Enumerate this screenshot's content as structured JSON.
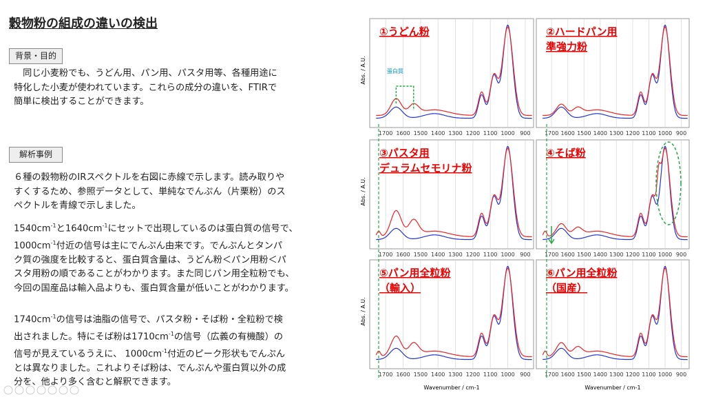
{
  "title": "穀物粉の組成の違いの検出",
  "sections": [
    {
      "heading": "背景・目的",
      "paragraphs": [
        [
          [
            "　同じ小麦粉でも、うどん用、パン用、パスタ用等、各種用途に"
          ],
          [
            "特化した小麦が使われています。これらの成分の違いを、FTIRで"
          ],
          [
            "簡単に検出することができます。"
          ]
        ]
      ]
    },
    {
      "heading": "解析事例",
      "paragraphs": [
        [
          [
            "６種の穀物粉のIRスペクトルを右図に赤線で示します。読み取りや"
          ],
          [
            "すくするため、参照データとして、単純なでんぷん（片栗粉）のス"
          ],
          [
            "ペクトルを青線で示しました。"
          ]
        ],
        [
          [
            "1540cm",
            {
              "sup": "-1"
            },
            "と1640cm",
            {
              "sup": "-1"
            },
            "にセットで出現しているのは蛋白質の信号で、"
          ],
          [
            "1000cm",
            {
              "sup": "-1"
            },
            "付近の信号は主にでんぷん由来です。でんぷんとタンパ"
          ],
          [
            "ク質の強度を比較すると、蛋白質含量は、うどん粉＜パン用粉＜パ"
          ],
          [
            "スタ用粉の順であることがわかります。また同じパン用全粒粉でも、"
          ],
          [
            "今回の国産品は輸入品よりも、蛋白質含量が低いことがわかります。"
          ]
        ],
        [
          [
            "1740cm",
            {
              "sup": "-1"
            },
            "の信号は油脂の信号で、パスタ粉・そば粉・全粒粉で検"
          ],
          [
            "出されました。特にそば粉は1710cm",
            {
              "sup": "-1"
            },
            "の信号（広義の有機酸）の"
          ],
          [
            "信号が見えているうえに、 1000cm",
            {
              "sup": "-1"
            },
            "付近のピーク形状もでんぷん"
          ],
          [
            "とは異なりました。これよりそば粉は、でんぷんや蛋白質以外の成"
          ],
          [
            "分を、他より多く含むと解釈できます。"
          ]
        ]
      ]
    }
  ],
  "panels": [
    {
      "label": [
        "①うどん粉"
      ],
      "annotation": "蛋白質"
    },
    {
      "label": [
        "②ハードパン用",
        "準強力粉"
      ]
    },
    {
      "label": [
        "③パスタ用",
        "デュラムセモリナ粉"
      ]
    },
    {
      "label": [
        "④そば粉"
      ]
    },
    {
      "label": [
        "⑤パン用全粒粉",
        "（輸入）"
      ]
    },
    {
      "label": [
        "⑥パン用全粒粉",
        "（国産）"
      ]
    }
  ],
  "axis": {
    "ylabel": "Abs. / A.U.",
    "xlabel": "Wavenumber / cm-1",
    "xticks": [
      "1700",
      "1600",
      "1500",
      "1400",
      "1300",
      "1200",
      "1100",
      "1000",
      "900"
    ]
  }
}
